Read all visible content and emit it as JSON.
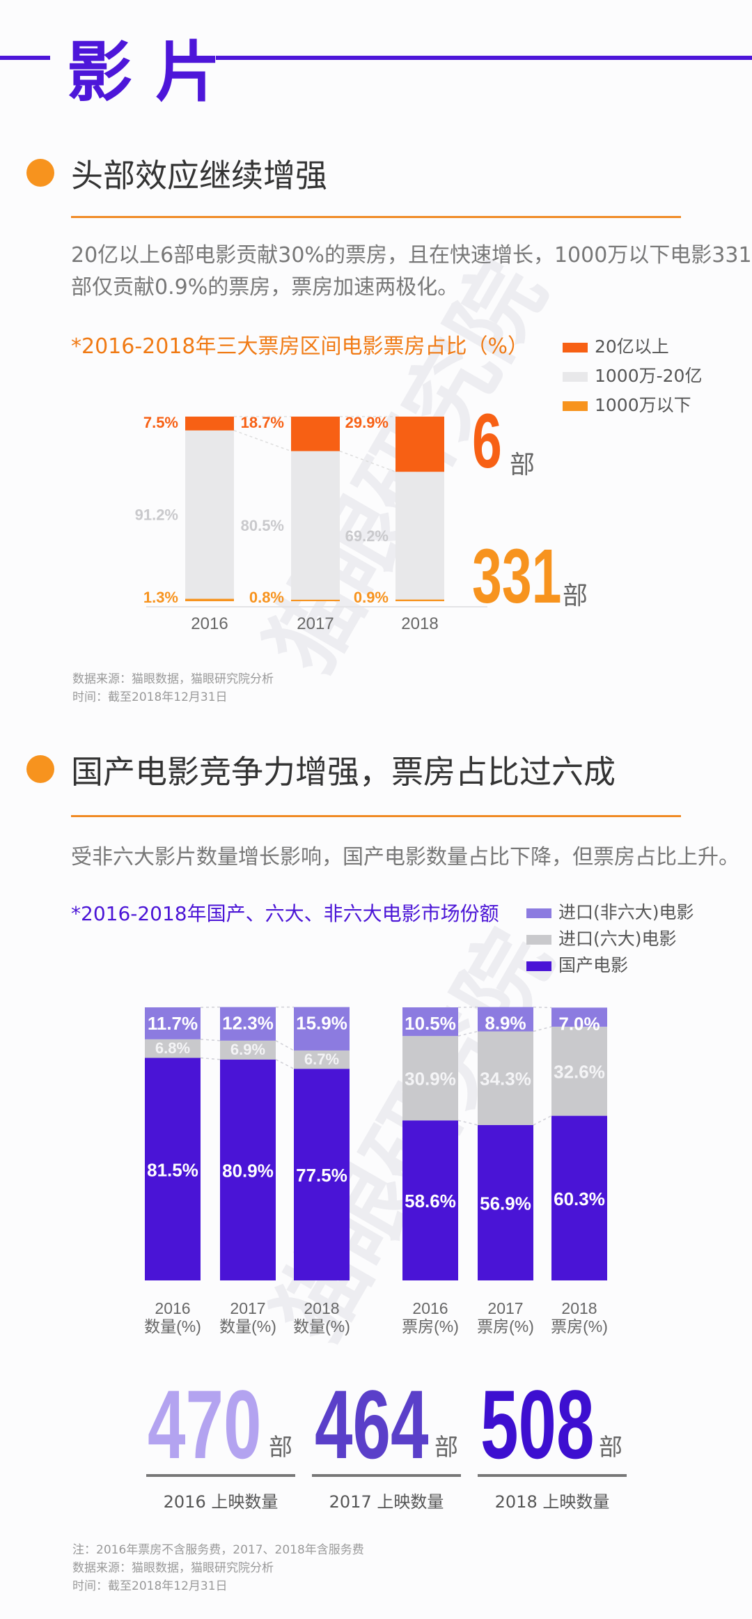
{
  "header": {
    "title": "影 片"
  },
  "watermark_text": "猫眼研究院",
  "section1": {
    "title": "头部效应继续增强",
    "desc_line1": "20亿以上6部电影贡献30%的票房，且在快速增长，1000万以下电影331",
    "desc_line2": "部仅贡献0.9%的票房，票房加速两极化。",
    "chart_title": "*2016-2018年三大票房区间电影票房占比（%）",
    "big_top_value": "6",
    "big_top_unit": "部",
    "big_bottom_value": "331",
    "big_bottom_unit": "部",
    "source_line1": "数据来源：猫眼数据，猫眼研究院分析",
    "source_line2": "时间：截至2018年12月31日"
  },
  "section2": {
    "title": "国产电影竞争力增强，票房占比过六成",
    "desc": "受非六大影片数量增长影响，国产电影数量占比下降，但票房占比上升。",
    "chart_title": "*2016-2018年国产、六大、非六大电影市场份额",
    "counts": [
      {
        "value": "470",
        "unit": "部",
        "label": "2016 上映数量",
        "color": "#b3a3f0"
      },
      {
        "value": "464",
        "unit": "部",
        "label": "2017 上映数量",
        "color": "#5a3fc9"
      },
      {
        "value": "508",
        "unit": "部",
        "label": "2018 上映数量",
        "color": "#3d0fd0"
      }
    ],
    "note_line1": "注：2016年票房不含服务费，2017、2018年含服务费",
    "note_line2": "数据来源：猫眼数据，猫眼研究院分析",
    "note_line3": "时间：截至2018年12月31日"
  },
  "chart_data": [
    {
      "type": "bar",
      "stacked": true,
      "title": "*2016-2018年三大票房区间电影票房占比（%）",
      "categories": [
        "2016",
        "2017",
        "2018"
      ],
      "ylim": [
        0,
        100
      ],
      "series": [
        {
          "name": "1000万以下",
          "color": "#f7931e",
          "values": [
            1.3,
            0.8,
            0.9
          ],
          "labels": [
            "1.3%",
            "0.8%",
            "0.9%"
          ]
        },
        {
          "name": "1000万-20亿",
          "color": "#e8e8ea",
          "values": [
            91.2,
            80.5,
            69.2
          ],
          "labels": [
            "91.2%",
            "80.5%",
            "69.2%"
          ]
        },
        {
          "name": "20亿以上",
          "color": "#f76014",
          "values": [
            7.5,
            18.7,
            29.9
          ],
          "labels": [
            "7.5%",
            "18.7%",
            "29.9%"
          ]
        }
      ]
    },
    {
      "type": "bar",
      "stacked": true,
      "title": "*2016-2018年国产、六大、非六大电影市场份额",
      "categories": [
        "2016\n数量(%)",
        "2017\n数量(%)",
        "2018\n数量(%)",
        "2016\n票房(%)",
        "2017\n票房(%)",
        "2018\n票房(%)"
      ],
      "ylim": [
        0,
        100
      ],
      "series": [
        {
          "name": "国产电影",
          "color": "#4a14d6",
          "values": [
            81.5,
            80.9,
            77.5,
            58.6,
            56.9,
            60.3
          ],
          "labels": [
            "81.5%",
            "80.9%",
            "77.5%",
            "58.6%",
            "56.9%",
            "60.3%"
          ]
        },
        {
          "name": "进口(六大)电影",
          "color": "#c9c9cc",
          "values": [
            6.8,
            6.9,
            6.7,
            30.9,
            34.3,
            32.6
          ],
          "labels": [
            "6.8%",
            "6.9%",
            "6.7%",
            "30.9%",
            "34.3%",
            "32.6%"
          ]
        },
        {
          "name": "进口(非六大)电影",
          "color": "#8c7be0",
          "values": [
            11.7,
            12.3,
            15.9,
            10.5,
            8.9,
            7.0
          ],
          "labels": [
            "11.7%",
            "12.3%",
            "15.9%",
            "10.5%",
            "8.9%",
            "7.0%"
          ]
        }
      ]
    }
  ]
}
